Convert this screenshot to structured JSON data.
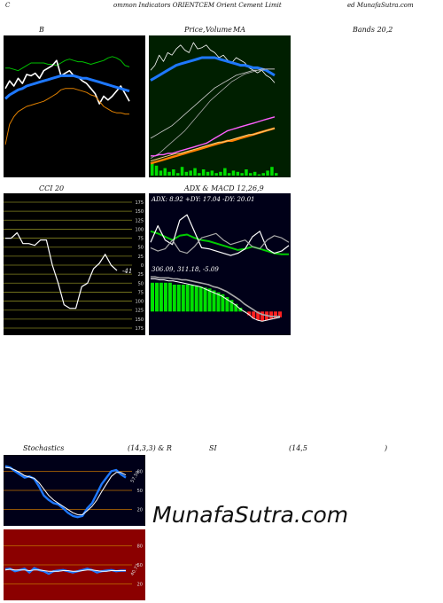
{
  "header": {
    "part1": "C",
    "part2": "ommon  Indicators ORIENTCEM Orient Cement Limit",
    "part3": "ed MunafaSutra.com"
  },
  "titles": {
    "bollinger": "B",
    "price": "Price,",
    "volume": "Volume",
    "ma": "MA",
    "bands": "Bands 20,2",
    "cci": "CCI 20",
    "adx_macd": "ADX  & MACD 12,26,9",
    "stochastics": "Stochastics",
    "stoch_params": "(14,3,3) & R",
    "rsi": "SI",
    "rsi_params": "(14,5",
    "rsi_close": ")"
  },
  "watermark": "MunafaSutra.com",
  "colors": {
    "bollinger_bg": "#000000",
    "ma_bg": "#001f00",
    "cci_bg": "#000000",
    "adx_bg": "#000018",
    "stoch_bg": "#000018",
    "rsi_bg": "#8b0000",
    "grid_green": "#808020",
    "grid_orange": "#c07000"
  },
  "chart_data": [
    {
      "id": "bollinger",
      "type": "line",
      "series": [
        {
          "color": "#00c000",
          "values": [
            80,
            80,
            79,
            78,
            80,
            82,
            84,
            84,
            84,
            84,
            83,
            83,
            82,
            84,
            86,
            87,
            86,
            85,
            85,
            84,
            83,
            84,
            85,
            86,
            88,
            89,
            88,
            86,
            82,
            81
          ]
        },
        {
          "color": "#ffffff",
          "values": [
            64,
            70,
            66,
            72,
            68,
            75,
            74,
            76,
            72,
            78,
            80,
            82,
            86,
            74,
            76,
            78,
            74,
            73,
            70,
            68,
            64,
            60,
            52,
            58,
            55,
            58,
            62,
            66,
            60,
            54
          ]
        },
        {
          "color": "#1e78ff",
          "values": [
            56,
            59,
            61,
            63,
            64,
            66,
            67,
            68,
            69,
            70,
            71,
            72,
            73,
            74,
            74,
            74,
            74,
            73,
            72,
            72,
            71,
            70,
            69,
            68,
            67,
            66,
            65,
            64,
            63,
            62
          ]
        },
        {
          "color": "#e08000",
          "values": [
            20,
            36,
            42,
            46,
            48,
            50,
            51,
            52,
            53,
            54,
            56,
            58,
            60,
            63,
            64,
            64,
            64,
            63,
            62,
            61,
            59,
            58,
            54,
            50,
            48,
            46,
            45,
            45,
            44,
            44
          ]
        }
      ],
      "y_min": 0,
      "y_max": 100
    },
    {
      "id": "price_ma",
      "type": "line",
      "series": [
        {
          "color": "#ffffff",
          "values": [
            78,
            82,
            90,
            85,
            92,
            90,
            95,
            98,
            94,
            92,
            100,
            95,
            96,
            98,
            94,
            92,
            88,
            90,
            86,
            84,
            88,
            86,
            84,
            80,
            78,
            76,
            78,
            74,
            72,
            68
          ]
        },
        {
          "color": "#1e78ff",
          "values": [
            70,
            72,
            74,
            76,
            78,
            80,
            82,
            83,
            84,
            85,
            86,
            87,
            88,
            88,
            88,
            88,
            87,
            86,
            85,
            84,
            83,
            82,
            82,
            81,
            80,
            80,
            79,
            78,
            76,
            74
          ]
        },
        {
          "color": "#cccccc",
          "values": [
            24,
            26,
            28,
            30,
            32,
            34,
            37,
            40,
            43,
            46,
            49,
            52,
            55,
            58,
            61,
            64,
            66,
            68,
            70,
            72,
            74,
            75,
            76,
            77,
            78,
            78,
            79,
            79,
            79,
            79
          ]
        },
        {
          "color": "#aaaaaa",
          "values": [
            8,
            10,
            12,
            15,
            18,
            21,
            24,
            27,
            30,
            34,
            38,
            42,
            46,
            50,
            54,
            57,
            60,
            63,
            66,
            69,
            71,
            73,
            75,
            76,
            77,
            78,
            78,
            79,
            79,
            79
          ]
        },
        {
          "color": "#ff60ff",
          "values": [
            10,
            10,
            11,
            11,
            12,
            12,
            13,
            14,
            15,
            16,
            17,
            18,
            19,
            20,
            22,
            24,
            26,
            28,
            30,
            31,
            32,
            33,
            34,
            35,
            36,
            37,
            38,
            39,
            40,
            41
          ]
        },
        {
          "color": "#ff8000",
          "values": [
            4,
            5,
            6,
            7,
            8,
            9,
            10,
            11,
            12,
            13,
            14,
            15,
            16,
            17,
            18,
            19,
            20,
            21,
            22,
            22,
            23,
            24,
            25,
            26,
            27,
            28,
            29,
            30,
            31,
            32
          ]
        },
        {
          "color": "#ffd080",
          "values": [
            6,
            7,
            8,
            9,
            10,
            11,
            12,
            12,
            13,
            14,
            15,
            16,
            17,
            18,
            19,
            20,
            21,
            21,
            22,
            23,
            24,
            25,
            26,
            27,
            27,
            28,
            29,
            30,
            31,
            32
          ]
        }
      ],
      "volume": [
        10,
        8,
        4,
        6,
        3,
        5,
        2,
        7,
        3,
        4,
        6,
        2,
        5,
        3,
        4,
        2,
        3,
        6,
        2,
        4,
        3,
        2,
        5,
        2,
        3,
        1,
        2,
        4,
        7,
        2
      ],
      "y_min": 0,
      "y_max": 100
    },
    {
      "id": "cci",
      "type": "line",
      "levels": [
        "175",
        "150",
        "125",
        "100",
        "75",
        "50",
        "25",
        "0",
        "25",
        "50",
        "75",
        "100",
        "125",
        "150",
        "175"
      ],
      "values": [
        75,
        75,
        90,
        60,
        60,
        55,
        70,
        70,
        0,
        -50,
        -110,
        -120,
        -120,
        -60,
        -50,
        -10,
        5,
        30,
        0,
        -15
      ],
      "last_value": "-41",
      "y_min": -175,
      "y_max": 175
    },
    {
      "id": "adx",
      "type": "line",
      "label": "ADX: 8.92  +DY: 17.04  -DY: 20.01",
      "series": [
        {
          "name": "ADX",
          "color": "#00cc00",
          "values": [
            30,
            28,
            25,
            22,
            26,
            27,
            24,
            22,
            21,
            19,
            17,
            15,
            13,
            14,
            16,
            14,
            12,
            10,
            9,
            9
          ]
        },
        {
          "name": "+DY",
          "color": "#ffffff",
          "values": [
            20,
            35,
            22,
            18,
            40,
            45,
            30,
            15,
            14,
            12,
            10,
            8,
            10,
            14,
            25,
            30,
            14,
            10,
            12,
            17
          ]
        },
        {
          "name": "-DY",
          "color": "#aaaaaa",
          "values": [
            15,
            12,
            14,
            22,
            12,
            10,
            16,
            24,
            26,
            28,
            22,
            18,
            20,
            22,
            16,
            14,
            22,
            26,
            24,
            20
          ]
        }
      ],
      "y_min": 0,
      "y_max": 50
    },
    {
      "id": "macd",
      "type": "bar",
      "label": "306.09,  311.18,  -5.09",
      "histogram": [
        30,
        30,
        30,
        30,
        30,
        28,
        28,
        28,
        28,
        28,
        27,
        26,
        25,
        24,
        22,
        20,
        18,
        15,
        12,
        8,
        4,
        0,
        -4,
        -7,
        -9,
        -10,
        -9,
        -8,
        -7,
        -6
      ],
      "macd_line": [
        34,
        34,
        33,
        33,
        32,
        32,
        31,
        30,
        29,
        28,
        27,
        26,
        24,
        22,
        20,
        18,
        16,
        13,
        10,
        7,
        3,
        0,
        -3,
        -7,
        -9,
        -10,
        -9,
        -8,
        -7,
        -6
      ],
      "signal_line": [
        36,
        36,
        35,
        35,
        35,
        34,
        34,
        33,
        33,
        32,
        31,
        30,
        29,
        28,
        26,
        25,
        23,
        21,
        18,
        15,
        12,
        8,
        5,
        2,
        -1,
        -3,
        -4,
        -5,
        -5,
        -5
      ],
      "y_min": -20,
      "y_max": 40
    },
    {
      "id": "stochastics",
      "type": "line",
      "levels": [
        "80",
        "50",
        "20"
      ],
      "value_label": "57.59",
      "k_values": [
        88,
        86,
        80,
        75,
        70,
        72,
        68,
        56,
        42,
        35,
        30,
        28,
        22,
        15,
        10,
        8,
        10,
        22,
        30,
        45,
        60,
        70,
        80,
        82,
        75,
        70
      ],
      "d_values": [
        86,
        85,
        82,
        78,
        73,
        71,
        69,
        62,
        52,
        42,
        35,
        30,
        25,
        20,
        15,
        12,
        12,
        18,
        25,
        35,
        48,
        60,
        72,
        78,
        78,
        74
      ],
      "y_min": 0,
      "y_max": 100
    },
    {
      "id": "rsi",
      "type": "line",
      "levels": [
        "80",
        "50",
        "20"
      ],
      "value_label": "40.77",
      "values": [
        43,
        44,
        40,
        42,
        44,
        38,
        45,
        42,
        40,
        36,
        40,
        41,
        42,
        40,
        38,
        40,
        42,
        44,
        42,
        38,
        40,
        41,
        42,
        40,
        41,
        41
      ],
      "sma": [
        42,
        43,
        42,
        42,
        42,
        41,
        42,
        42,
        41,
        40,
        40,
        40,
        41,
        41,
        40,
        40,
        41,
        42,
        42,
        41,
        40,
        40,
        41,
        41,
        41,
        41
      ],
      "y_min": 0,
      "y_max": 100
    }
  ]
}
